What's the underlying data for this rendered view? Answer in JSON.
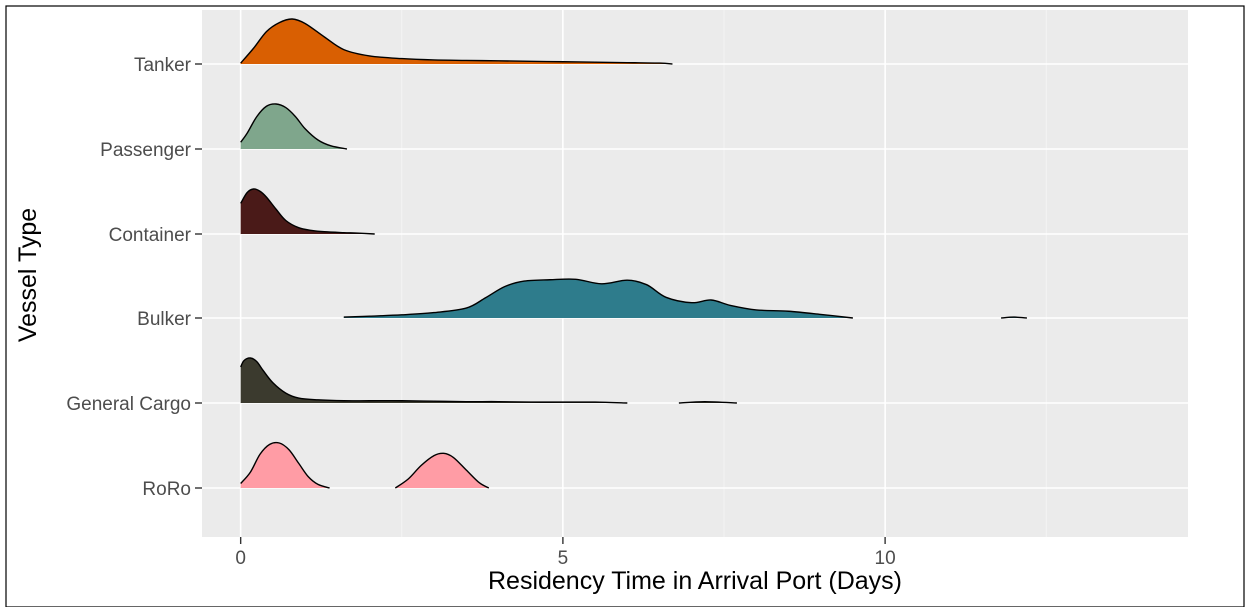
{
  "chart_data": {
    "type": "ridgeline",
    "title": "",
    "xlabel": "Residency Time in Arrival Port (Days)",
    "ylabel": "Vessel Type",
    "xlim": [
      -0.6,
      14.7
    ],
    "x_ticks": [
      0,
      5,
      10
    ],
    "x_tick_labels": [
      "0",
      "5",
      "10"
    ],
    "grid": true,
    "legend": "none",
    "categories": [
      "Tanker",
      "Passenger",
      "Container",
      "Bulker",
      "General Cargo",
      "RoRo"
    ],
    "series": [
      {
        "name": "Tanker",
        "color": "#d95f02",
        "x": [
          0.0,
          0.2,
          0.4,
          0.6,
          0.8,
          1.0,
          1.3,
          1.6,
          2.0,
          2.5,
          3.0,
          3.5,
          4.0,
          4.5,
          5.0,
          5.5,
          6.0,
          6.5,
          6.7
        ],
        "density": [
          0.02,
          0.35,
          0.72,
          0.92,
          1.0,
          0.9,
          0.6,
          0.32,
          0.18,
          0.12,
          0.09,
          0.08,
          0.07,
          0.06,
          0.05,
          0.04,
          0.03,
          0.02,
          0.0
        ]
      },
      {
        "name": "Passenger",
        "color": "#7fa68c",
        "x": [
          0.0,
          0.1,
          0.25,
          0.4,
          0.55,
          0.7,
          0.85,
          1.0,
          1.2,
          1.4,
          1.65
        ],
        "density": [
          0.15,
          0.35,
          0.72,
          0.95,
          1.0,
          0.92,
          0.72,
          0.45,
          0.2,
          0.07,
          0.0
        ]
      },
      {
        "name": "Container",
        "color": "#4a1a18",
        "x": [
          0.0,
          0.1,
          0.2,
          0.3,
          0.4,
          0.55,
          0.7,
          0.9,
          1.1,
          1.3,
          1.6,
          1.8,
          2.08
        ],
        "density": [
          0.68,
          0.92,
          1.0,
          0.95,
          0.82,
          0.55,
          0.3,
          0.14,
          0.08,
          0.05,
          0.03,
          0.02,
          0.0
        ]
      },
      {
        "name": "Bulker",
        "color": "#2e7c8c",
        "x": [
          1.6,
          2.0,
          2.5,
          3.0,
          3.5,
          3.8,
          4.1,
          4.4,
          4.8,
          5.2,
          5.6,
          6.0,
          6.3,
          6.6,
          7.0,
          7.3,
          7.6,
          8.0,
          8.5,
          9.0,
          9.5
        ],
        "density": [
          0.02,
          0.04,
          0.07,
          0.12,
          0.22,
          0.45,
          0.7,
          0.82,
          0.85,
          0.86,
          0.76,
          0.84,
          0.74,
          0.46,
          0.34,
          0.4,
          0.28,
          0.18,
          0.15,
          0.08,
          0.0
        ],
        "x_extra": [
          11.8,
          12.0,
          12.2
        ],
        "density_extra": [
          0.0,
          0.02,
          0.0
        ]
      },
      {
        "name": "General Cargo",
        "color": "#3b3a2e",
        "x": [
          0.0,
          0.05,
          0.15,
          0.25,
          0.35,
          0.5,
          0.7,
          0.9,
          1.2,
          1.6,
          2.0,
          2.5,
          3.0,
          3.5,
          4.0,
          4.5,
          5.0,
          5.5,
          6.0
        ],
        "density": [
          0.8,
          0.94,
          1.0,
          0.92,
          0.72,
          0.45,
          0.22,
          0.11,
          0.07,
          0.05,
          0.05,
          0.05,
          0.04,
          0.03,
          0.03,
          0.02,
          0.02,
          0.02,
          0.0
        ],
        "x_extra": [
          6.8,
          7.2,
          7.7
        ],
        "density_extra": [
          0.0,
          0.03,
          0.0
        ]
      },
      {
        "name": "RoRo",
        "color": "#ff9ca5",
        "x": [
          0.0,
          0.15,
          0.3,
          0.45,
          0.6,
          0.75,
          0.9,
          1.05,
          1.2,
          1.38
        ],
        "density": [
          0.1,
          0.35,
          0.75,
          0.97,
          1.0,
          0.85,
          0.55,
          0.25,
          0.08,
          0.0
        ],
        "x_extra": [
          2.4,
          2.6,
          2.8,
          3.0,
          3.15,
          3.3,
          3.5,
          3.7,
          3.85
        ],
        "density_extra": [
          0.0,
          0.2,
          0.5,
          0.72,
          0.77,
          0.68,
          0.4,
          0.12,
          0.0
        ]
      }
    ]
  }
}
